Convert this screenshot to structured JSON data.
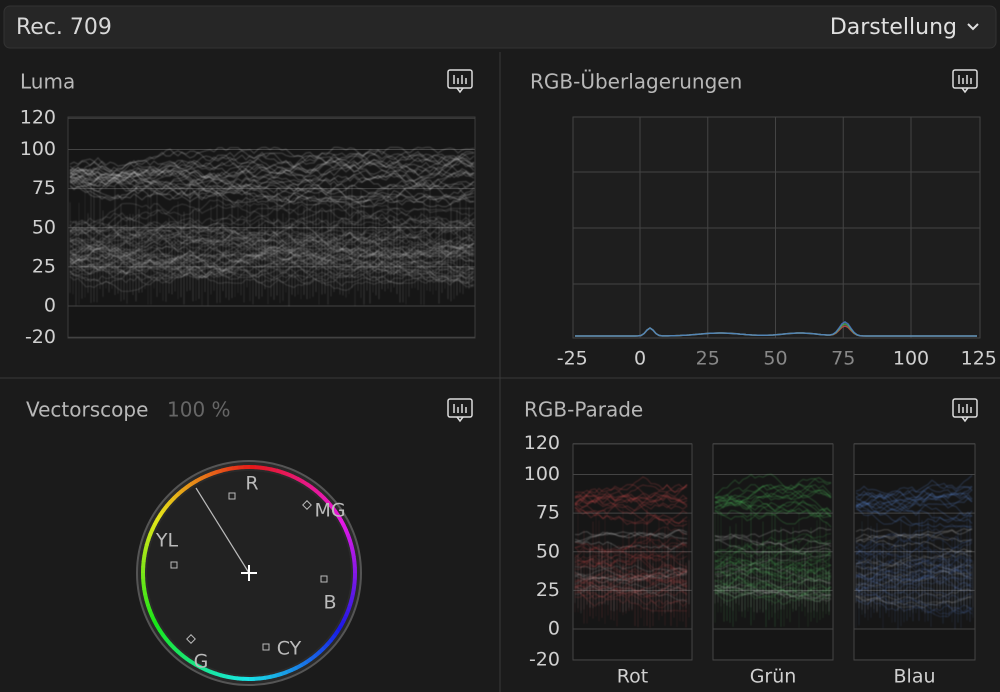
{
  "header": {
    "title": "Rec. 709",
    "view_menu": "Darstellung"
  },
  "luma": {
    "title": "Luma",
    "scale": [
      120,
      100,
      75,
      50,
      25,
      0,
      -20
    ]
  },
  "rgb_overlay": {
    "title": "RGB-Überlagerungen",
    "scale": [
      -25,
      0,
      25,
      50,
      75,
      100,
      125
    ]
  },
  "vectorscope": {
    "title": "Vectorscope",
    "zoom": "100 %",
    "targets": [
      "R",
      "MG",
      "B",
      "CY",
      "G",
      "YL"
    ]
  },
  "rgb_parade": {
    "title": "RGB-Parade",
    "scale": [
      120,
      100,
      75,
      50,
      25,
      0,
      -20
    ],
    "channels": [
      "Rot",
      "Grün",
      "Blau"
    ]
  }
}
